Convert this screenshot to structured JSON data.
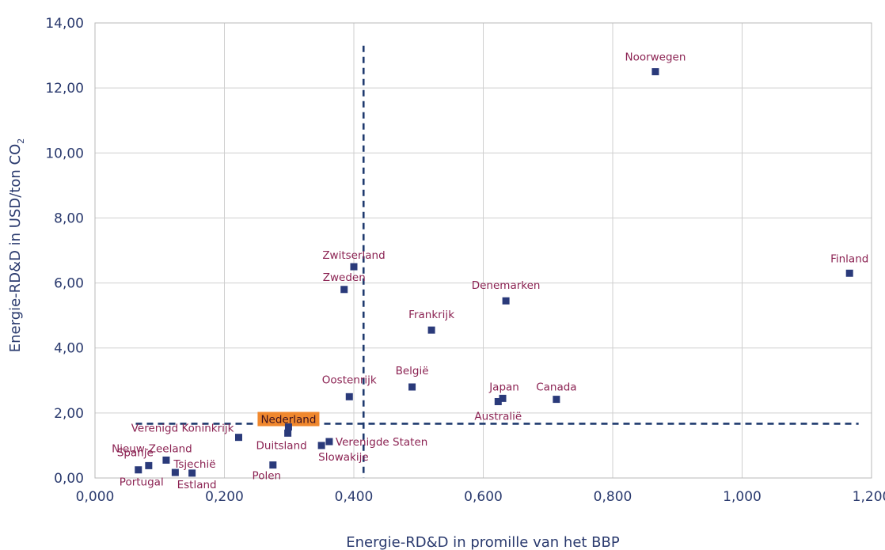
{
  "chart_data": {
    "type": "scatter",
    "xlabel": "Energie-RD&D in promille van het BBP",
    "ylabel": "Energie-RD&D in USD/ton CO",
    "ylabel_sub": "2",
    "xlim": [
      0,
      1.2
    ],
    "ylim": [
      0,
      14
    ],
    "x_ticks": [
      "0,000",
      "0,200",
      "0,400",
      "0,600",
      "0,800",
      "1,000",
      "1,200"
    ],
    "y_ticks": [
      "0,00",
      "2,00",
      "4,00",
      "6,00",
      "8,00",
      "10,00",
      "12,00",
      "14,00"
    ],
    "grid": true,
    "reference_lines": {
      "x": 0.415,
      "y": 1.67,
      "style": "dashed"
    },
    "highlight": {
      "label": "Nederland",
      "color": "#f0882e"
    },
    "points": [
      {
        "label": "Noorwegen",
        "x": 0.866,
        "y": 12.5
      },
      {
        "label": "Finland",
        "x": 1.166,
        "y": 6.3
      },
      {
        "label": "Zwitserland",
        "x": 0.4,
        "y": 6.5
      },
      {
        "label": "Zweden",
        "x": 0.385,
        "y": 5.8
      },
      {
        "label": "Denemarken",
        "x": 0.635,
        "y": 5.45
      },
      {
        "label": "Frankrijk",
        "x": 0.52,
        "y": 4.55
      },
      {
        "label": "België",
        "x": 0.49,
        "y": 2.8
      },
      {
        "label": "Oostenrijk",
        "x": 0.393,
        "y": 2.5
      },
      {
        "label": "Japan",
        "x": 0.63,
        "y": 2.45
      },
      {
        "label": "Australië",
        "x": 0.623,
        "y": 2.35
      },
      {
        "label": "Canada",
        "x": 0.713,
        "y": 2.42
      },
      {
        "label": "Nederland",
        "x": 0.299,
        "y": 1.57
      },
      {
        "label": "Verenigd Koninkrijk",
        "x": 0.222,
        "y": 1.25
      },
      {
        "label": "Duitsland",
        "x": 0.298,
        "y": 1.38
      },
      {
        "label": "Verenigde Staten",
        "x": 0.362,
        "y": 1.12
      },
      {
        "label": "Slowakije",
        "x": 0.35,
        "y": 1.0
      },
      {
        "label": "Polen",
        "x": 0.275,
        "y": 0.4
      },
      {
        "label": "Nieuw-Zeeland",
        "x": 0.11,
        "y": 0.55
      },
      {
        "label": "Spanje",
        "x": 0.083,
        "y": 0.38
      },
      {
        "label": "Portugal",
        "x": 0.067,
        "y": 0.25
      },
      {
        "label": "Tsjechië",
        "x": 0.124,
        "y": 0.17
      },
      {
        "label": "Estland",
        "x": 0.15,
        "y": 0.15
      }
    ]
  }
}
